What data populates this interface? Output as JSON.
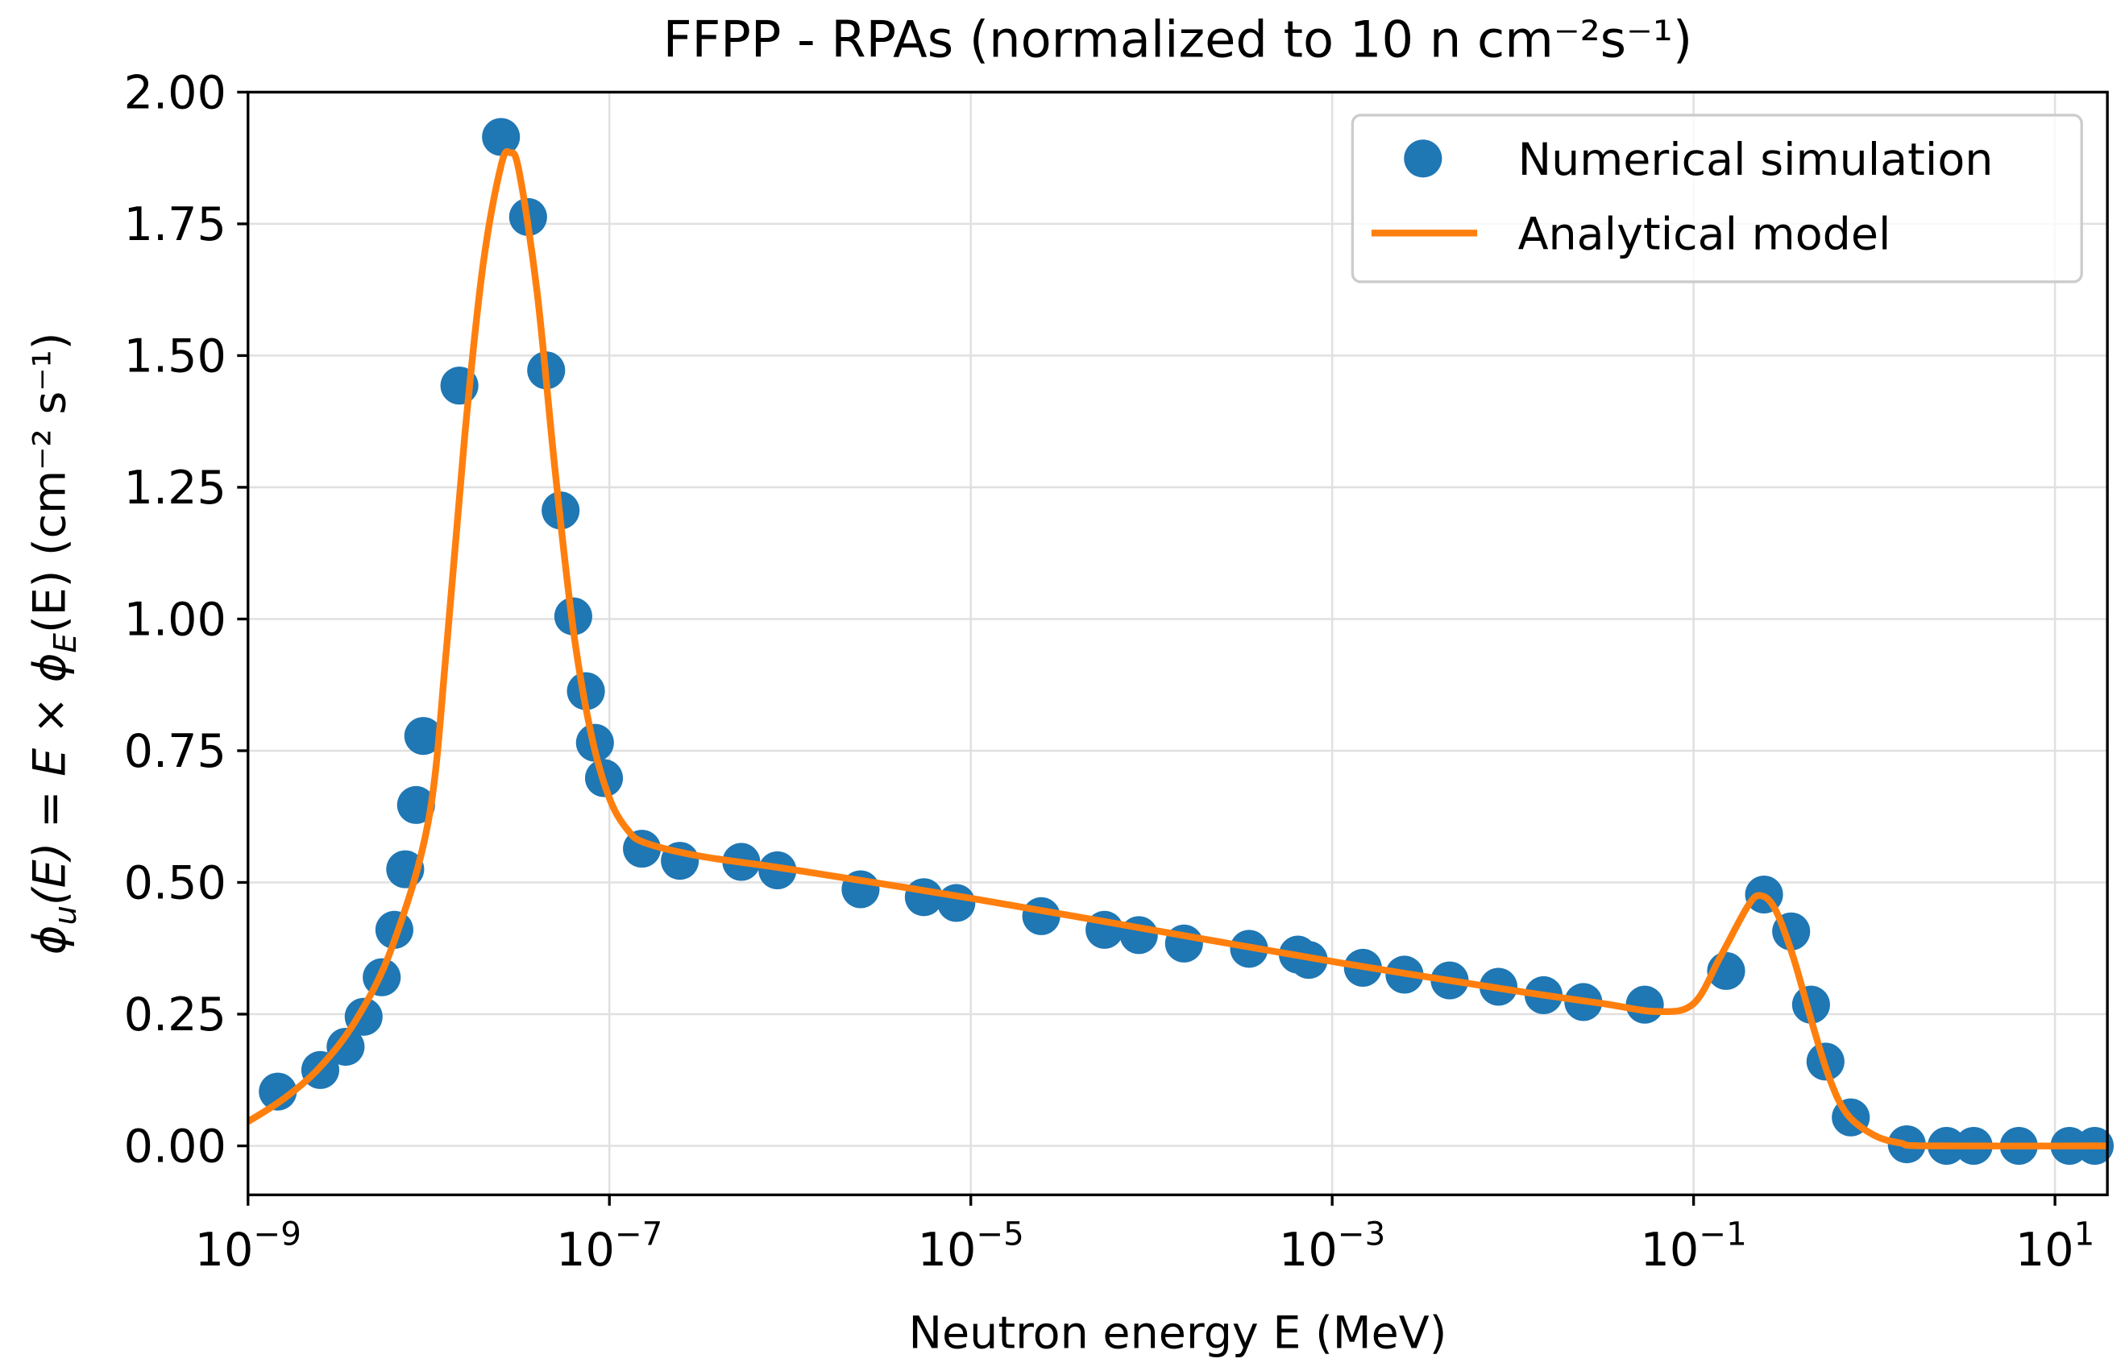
{
  "chart_data": {
    "type": "scatter",
    "title": "FFPP - RPAs (normalized to 10 n cm⁻²s⁻¹)",
    "xlabel": "Neutron energy E (MeV)",
    "ylabel_parts": [
      "ϕ",
      "u",
      "(E) = E × ϕ",
      "E",
      "(E) (cm⁻² s⁻¹)"
    ],
    "xscale": "log",
    "xlim_log10": [
      -9,
      1.29
    ],
    "ylim": [
      -0.093,
      2.0
    ],
    "grid": true,
    "legend_position": "top-right",
    "x_ticks": [
      {
        "log10": -9,
        "base": "10",
        "exp": "−9"
      },
      {
        "log10": -7,
        "base": "10",
        "exp": "−7"
      },
      {
        "log10": -5,
        "base": "10",
        "exp": "−5"
      },
      {
        "log10": -3,
        "base": "10",
        "exp": "−3"
      },
      {
        "log10": -1,
        "base": "10",
        "exp": "−1"
      },
      {
        "log10": 1,
        "base": "10",
        "exp": "1"
      }
    ],
    "y_ticks": [
      {
        "value": 0.0,
        "label": "0.00"
      },
      {
        "value": 0.25,
        "label": "0.25"
      },
      {
        "value": 0.5,
        "label": "0.50"
      },
      {
        "value": 0.75,
        "label": "0.75"
      },
      {
        "value": 1.0,
        "label": "1.00"
      },
      {
        "value": 1.25,
        "label": "1.25"
      },
      {
        "value": 1.5,
        "label": "1.50"
      },
      {
        "value": 1.75,
        "label": "1.75"
      },
      {
        "value": 2.0,
        "label": "2.00"
      }
    ],
    "series": [
      {
        "name": "Numerical simulation",
        "kind": "scatter",
        "color": "#1f77b4",
        "x_log10": [
          -8.835,
          -8.6,
          -8.46,
          -8.36,
          -8.26,
          -8.19,
          -8.13,
          -8.07,
          -8.03,
          -7.83,
          -7.6,
          -7.45,
          -7.35,
          -7.27,
          -7.2,
          -7.13,
          -7.08,
          -7.03,
          -6.82,
          -6.61,
          -6.27,
          -6.07,
          -5.61,
          -5.26,
          -5.08,
          -4.61,
          -4.26,
          -4.07,
          -3.82,
          -3.46,
          -3.19,
          -3.13,
          -2.83,
          -2.6,
          -2.35,
          -2.08,
          -1.83,
          -1.61,
          -1.27,
          -0.82,
          -0.61,
          -0.46,
          -0.35,
          -0.27,
          -0.13,
          0.18,
          0.4,
          0.55,
          0.8,
          1.08,
          1.22
        ],
        "y": [
          0.103,
          0.144,
          0.188,
          0.245,
          0.32,
          0.41,
          0.525,
          0.647,
          0.778,
          1.443,
          1.915,
          1.763,
          1.472,
          1.206,
          1.005,
          0.863,
          0.765,
          0.698,
          0.564,
          0.541,
          0.539,
          0.523,
          0.487,
          0.472,
          0.461,
          0.436,
          0.41,
          0.4,
          0.384,
          0.374,
          0.363,
          0.353,
          0.338,
          0.325,
          0.314,
          0.302,
          0.286,
          0.273,
          0.268,
          0.332,
          0.477,
          0.407,
          0.268,
          0.16,
          0.054,
          0.003,
          0.0,
          0.0,
          0.0,
          0.0,
          0.0
        ]
      },
      {
        "name": "Analytical model",
        "kind": "line",
        "color": "#ff7f0e",
        "x_log10": [
          -9.0,
          -8.8,
          -8.6,
          -8.4,
          -8.2,
          -8.0,
          -7.9,
          -7.8,
          -7.7,
          -7.6,
          -7.55,
          -7.5,
          -7.4,
          -7.3,
          -7.2,
          -7.1,
          -7.0,
          -6.9,
          -6.8,
          -6.5,
          -6.0,
          -5.0,
          -4.0,
          -3.0,
          -2.0,
          -1.5,
          -1.2,
          -1.0,
          -0.85,
          -0.7,
          -0.63,
          -0.55,
          -0.45,
          -0.35,
          -0.25,
          -0.15,
          0.0,
          0.15,
          0.3,
          1.29
        ],
        "y": [
          0.046,
          0.09,
          0.15,
          0.24,
          0.38,
          0.62,
          0.95,
          1.35,
          1.67,
          1.86,
          1.885,
          1.85,
          1.62,
          1.28,
          0.98,
          0.78,
          0.66,
          0.6,
          0.575,
          0.55,
          0.525,
          0.47,
          0.41,
          0.35,
          0.295,
          0.27,
          0.255,
          0.27,
          0.36,
          0.455,
          0.475,
          0.45,
          0.36,
          0.24,
          0.13,
          0.06,
          0.02,
          0.005,
          0.0,
          0.0
        ]
      }
    ]
  }
}
